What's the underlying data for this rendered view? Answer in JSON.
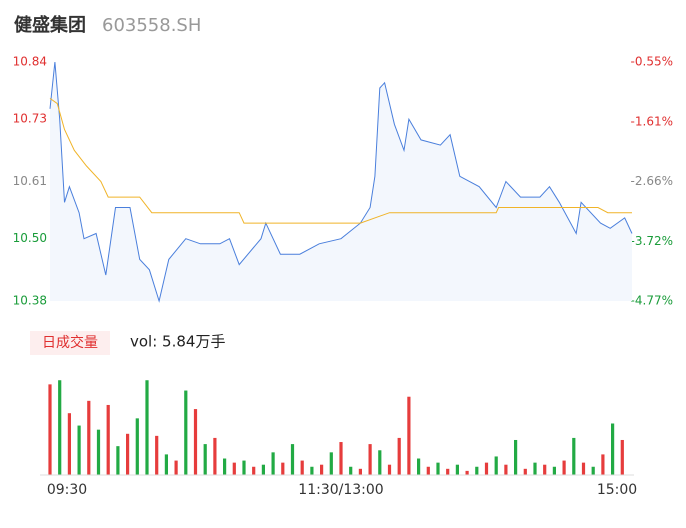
{
  "header": {
    "title": "健盛集团",
    "code": "603558.SH"
  },
  "chart_data": [
    {
      "type": "line",
      "ylim": [
        10.38,
        10.84
      ],
      "yticks": [
        10.38,
        {
          "value": 10.5,
          "label": "10.50"
        },
        10.61,
        10.73,
        10.84
      ],
      "ytick_colors": [
        "#1a9c3a",
        "#1a9c3a",
        "#888888",
        "#e03030",
        "#e03030"
      ],
      "y2lim": [
        -4.77,
        -0.55
      ],
      "y2ticks": [
        {
          "value": -4.77,
          "label": "-4.77%"
        },
        {
          "value": -3.72,
          "label": "-3.72%"
        },
        {
          "value": -2.66,
          "label": "-2.66%"
        },
        {
          "value": -1.61,
          "label": "-1.61%"
        },
        {
          "value": -0.55,
          "label": "-0.55%"
        }
      ],
      "y2tick_colors": [
        "#1a9c3a",
        "#1a9c3a",
        "#888888",
        "#e03030",
        "#e03030"
      ],
      "xlim": [
        0,
        240
      ],
      "series": [
        {
          "color": "#4a7fdc",
          "area": "#f3f7fd",
          "x": [
            0,
            2,
            4,
            6,
            8,
            12,
            14,
            19,
            23,
            27,
            33,
            37,
            41,
            45,
            49,
            56,
            62,
            70,
            74,
            78,
            87,
            89,
            95,
            103,
            111,
            120,
            128,
            132,
            134,
            136,
            138,
            142,
            146,
            148,
            153,
            161,
            165,
            169,
            177,
            184,
            188,
            194,
            202,
            206,
            210,
            217,
            219,
            227,
            231,
            237,
            240
          ],
          "values": [
            10.75,
            10.84,
            10.73,
            10.57,
            10.6,
            10.55,
            10.5,
            10.51,
            10.43,
            10.56,
            10.56,
            10.46,
            10.44,
            10.38,
            10.46,
            10.5,
            10.49,
            10.49,
            10.5,
            10.45,
            10.5,
            10.53,
            10.47,
            10.47,
            10.49,
            10.5,
            10.53,
            10.56,
            10.62,
            10.79,
            10.8,
            10.72,
            10.67,
            10.73,
            10.69,
            10.68,
            10.7,
            10.62,
            10.6,
            10.56,
            10.61,
            10.58,
            10.58,
            10.6,
            10.57,
            10.51,
            10.57,
            10.53,
            10.52,
            10.54,
            10.51
          ]
        },
        {
          "color": "#f0b429",
          "x": [
            0,
            3,
            6,
            10,
            15,
            21,
            24,
            37,
            42,
            78,
            80,
            128,
            140,
            184,
            185,
            226,
            230,
            240
          ],
          "values": [
            10.77,
            10.76,
            10.71,
            10.67,
            10.64,
            10.61,
            10.58,
            10.58,
            10.55,
            10.55,
            10.53,
            10.53,
            10.55,
            10.55,
            10.56,
            10.56,
            10.55,
            10.55
          ]
        }
      ]
    },
    {
      "type": "bar",
      "button": "日成交量",
      "label": "vol: 5.84万手",
      "xlim": [
        0,
        240
      ],
      "ylim": [
        0,
        100
      ],
      "xticks": [
        {
          "value": 0,
          "label": "09:30"
        },
        {
          "value": 120,
          "label": "11:30/13:00"
        },
        {
          "value": 240,
          "label": "15:00"
        }
      ],
      "x": [
        0,
        4,
        8,
        12,
        16,
        20,
        24,
        28,
        32,
        36,
        40,
        44,
        48,
        52,
        56,
        60,
        64,
        68,
        72,
        76,
        80,
        84,
        88,
        92,
        96,
        100,
        104,
        108,
        112,
        116,
        120,
        124,
        128,
        132,
        136,
        140,
        144,
        148,
        152,
        156,
        160,
        164,
        168,
        172,
        176,
        180,
        184,
        188,
        192,
        196,
        200,
        204,
        208,
        212,
        216,
        220,
        224,
        228,
        232,
        236
      ],
      "values": [
        88,
        92,
        60,
        48,
        72,
        44,
        68,
        28,
        40,
        55,
        92,
        38,
        20,
        14,
        82,
        64,
        30,
        36,
        16,
        12,
        14,
        8,
        10,
        22,
        12,
        30,
        14,
        8,
        10,
        22,
        32,
        8,
        6,
        30,
        24,
        10,
        36,
        76,
        16,
        8,
        12,
        6,
        10,
        4,
        8,
        12,
        18,
        10,
        34,
        6,
        12,
        10,
        8,
        14,
        36,
        12,
        8,
        20,
        50,
        34
      ],
      "colors": [
        "#e63c3c",
        "#22aa44",
        "#e63c3c",
        "#22aa44",
        "#e63c3c",
        "#22aa44",
        "#e63c3c",
        "#22aa44",
        "#e63c3c",
        "#22aa44",
        "#22aa44",
        "#e63c3c",
        "#22aa44",
        "#e63c3c",
        "#22aa44",
        "#e63c3c",
        "#22aa44",
        "#e63c3c",
        "#22aa44",
        "#e63c3c",
        "#22aa44",
        "#e63c3c",
        "#22aa44",
        "#22aa44",
        "#e63c3c",
        "#22aa44",
        "#e63c3c",
        "#22aa44",
        "#e63c3c",
        "#22aa44",
        "#e63c3c",
        "#22aa44",
        "#e63c3c",
        "#e63c3c",
        "#22aa44",
        "#e63c3c",
        "#e63c3c",
        "#e63c3c",
        "#22aa44",
        "#e63c3c",
        "#22aa44",
        "#e63c3c",
        "#22aa44",
        "#e63c3c",
        "#22aa44",
        "#e63c3c",
        "#22aa44",
        "#e63c3c",
        "#22aa44",
        "#e63c3c",
        "#22aa44",
        "#e63c3c",
        "#22aa44",
        "#e63c3c",
        "#22aa44",
        "#e63c3c",
        "#22aa44",
        "#e63c3c",
        "#22aa44",
        "#e63c3c"
      ]
    }
  ]
}
